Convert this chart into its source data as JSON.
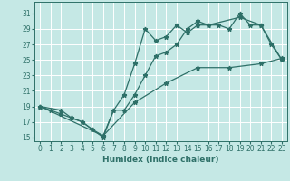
{
  "xlabel": "Humidex (Indice chaleur)",
  "bg_color": "#c5e8e5",
  "grid_color": "#ffffff",
  "line_color": "#2e7068",
  "xlim": [
    -0.5,
    23.5
  ],
  "ylim": [
    14.5,
    32.5
  ],
  "xticks": [
    0,
    1,
    2,
    3,
    4,
    5,
    6,
    7,
    8,
    9,
    10,
    11,
    12,
    13,
    14,
    15,
    16,
    17,
    18,
    19,
    20,
    21,
    22,
    23
  ],
  "yticks": [
    15,
    17,
    19,
    21,
    23,
    25,
    27,
    29,
    31
  ],
  "line1_x": [
    0,
    1,
    2,
    3,
    4,
    5,
    6,
    7,
    8,
    9,
    10,
    11,
    12,
    13,
    14,
    15,
    16,
    17,
    18,
    19,
    20,
    21,
    22,
    23
  ],
  "line1_y": [
    19,
    18.5,
    18,
    17.5,
    17,
    16,
    15,
    18.5,
    20.5,
    24.5,
    29,
    27.5,
    28,
    29.5,
    28.5,
    29.5,
    29.5,
    29.5,
    29,
    31,
    29.5,
    29.5,
    27,
    25
  ],
  "line2_x": [
    0,
    2,
    3,
    4,
    5,
    6,
    7,
    8,
    9,
    10,
    11,
    12,
    13,
    14,
    15,
    16,
    19,
    21,
    23
  ],
  "line2_y": [
    19,
    18.5,
    17.5,
    17,
    16,
    15.2,
    18.5,
    18.5,
    20.5,
    23,
    25.5,
    26,
    27,
    29,
    30,
    29.5,
    30.5,
    29.5,
    25
  ],
  "line3_x": [
    0,
    6,
    9,
    12,
    15,
    18,
    21,
    23
  ],
  "line3_y": [
    19,
    15.2,
    19.5,
    22,
    24,
    24,
    24.5,
    25.2
  ]
}
